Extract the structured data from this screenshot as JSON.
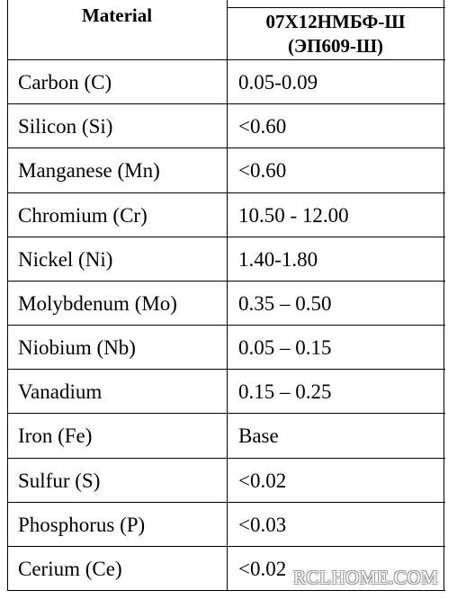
{
  "table": {
    "header": {
      "material": "Material",
      "alloy": [
        "07Х12НМБФ-Ш",
        "(ЭП609-Ш)"
      ]
    },
    "rows": [
      [
        "Carbon (C)",
        "0.05-0.09"
      ],
      [
        "Silicon (Si)",
        "<0.60"
      ],
      [
        "Manganese (Mn)",
        "<0.60"
      ],
      [
        "Chromium (Cr)",
        "10.50 - 12.00"
      ],
      [
        "Nickel (Ni)",
        "1.40-1.80"
      ],
      [
        "Molybdenum (Mo)",
        "0.35 – 0.50"
      ],
      [
        "Niobium (Nb)",
        "0.05 – 0.15"
      ],
      [
        "Vanadium",
        "0.15 – 0.25"
      ],
      [
        "Iron (Fe)",
        "Base"
      ],
      [
        "Sulfur (S)",
        "<0.02"
      ],
      [
        "Phosphorus (P)",
        "<0.03"
      ],
      [
        "Cerium (Ce)",
        "<0.02"
      ]
    ]
  },
  "watermark": "RCLHOME.COM"
}
